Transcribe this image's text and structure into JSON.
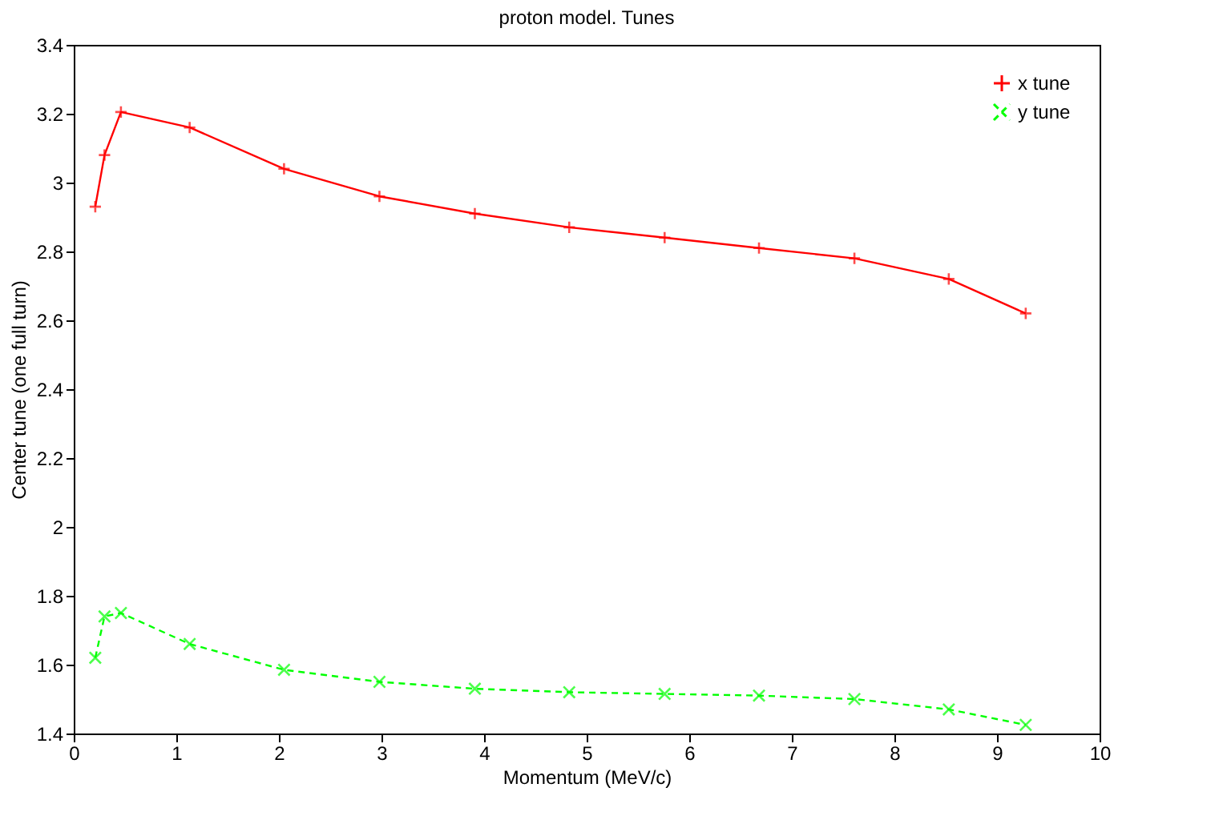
{
  "chart_data": {
    "type": "line",
    "title": "proton model. Tunes",
    "xlabel": "Momentum (MeV/c)",
    "ylabel": "Center tune (one full turn)",
    "x": [
      0.21,
      0.3,
      0.46,
      1.13,
      2.05,
      2.98,
      3.91,
      4.83,
      5.76,
      6.68,
      7.61,
      8.53,
      9.28
    ],
    "series": [
      {
        "name": "x tune",
        "color": "#ff0000",
        "marker": "cross",
        "line_style": "solid",
        "values": [
          2.93,
          3.08,
          3.205,
          3.16,
          3.04,
          2.96,
          2.91,
          2.87,
          2.84,
          2.81,
          2.78,
          2.72,
          2.62
        ]
      },
      {
        "name": "y tune",
        "color": "#00ff00",
        "marker": "x",
        "line_style": "dashed",
        "values": [
          1.62,
          1.74,
          1.75,
          1.66,
          1.585,
          1.55,
          1.53,
          1.52,
          1.515,
          1.51,
          1.5,
          1.47,
          1.425
        ]
      }
    ],
    "xlim": [
      0,
      10
    ],
    "xticks": [
      0,
      1,
      2,
      3,
      4,
      5,
      6,
      7,
      8,
      9,
      10
    ],
    "ylim": [
      1.4,
      3.4
    ],
    "yticks": [
      1.4,
      1.6,
      1.8,
      2,
      2.2,
      2.4,
      2.6,
      2.8,
      3,
      3.2,
      3.4
    ],
    "grid": false,
    "legend": "top right"
  }
}
